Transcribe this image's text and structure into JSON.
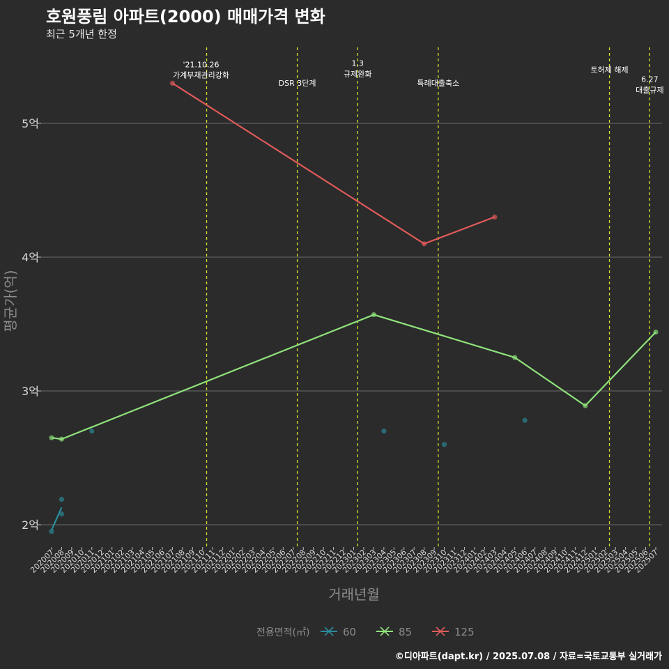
{
  "header": {
    "title": "호원풍림 아파트(2000) 매매가격 변화",
    "subtitle": "최근 5개년 한정",
    "caption": "©디아파트(dapt.kr) / 2025.07.08 / 자료=국토교통부 실거래가"
  },
  "chart_data": {
    "type": "line",
    "xlabel": "거래년월",
    "ylabel": "평균가(억)",
    "x_categories": [
      "202007",
      "202008",
      "202009",
      "202010",
      "202011",
      "202012",
      "202101",
      "202102",
      "202103",
      "202104",
      "202105",
      "202106",
      "202107",
      "202108",
      "202109",
      "202110",
      "202111",
      "202112",
      "202201",
      "202202",
      "202203",
      "202204",
      "202205",
      "202206",
      "202207",
      "202208",
      "202209",
      "202210",
      "202211",
      "202212",
      "202301",
      "202302",
      "202303",
      "202304",
      "202305",
      "202306",
      "202307",
      "202308",
      "202309",
      "202310",
      "202311",
      "202312",
      "202401",
      "202402",
      "202403",
      "202404",
      "202405",
      "202406",
      "202407",
      "202408",
      "202409",
      "202410",
      "202411",
      "202412",
      "202501",
      "202502",
      "202503",
      "202504",
      "202505",
      "202506",
      "202507"
    ],
    "ylim": [
      1.83,
      5.5
    ],
    "y_ticks": [
      {
        "value": 2,
        "label": "2억"
      },
      {
        "value": 3,
        "label": "3억"
      },
      {
        "value": 4,
        "label": "4억"
      },
      {
        "value": 5,
        "label": "5억"
      }
    ],
    "grid": true,
    "legend": {
      "title": "전용면적(㎡)",
      "position": "bottom",
      "entries": [
        {
          "label": "60",
          "color": "#2a8c9c"
        },
        {
          "label": "85",
          "color": "#8fe37b"
        },
        {
          "label": "125",
          "color": "#e05a5a"
        }
      ]
    },
    "series": [
      {
        "name": "60",
        "color": "#2a8c9c",
        "line": [
          {
            "x": "202007",
            "y": 1.96
          },
          {
            "x": "202008",
            "y": 2.13
          }
        ],
        "points": [
          {
            "x": "202007",
            "y": 1.95
          },
          {
            "x": "202008",
            "y": 2.19
          },
          {
            "x": "202008",
            "y": 2.08
          },
          {
            "x": "202011",
            "y": 2.7
          },
          {
            "x": "202304",
            "y": 2.7
          },
          {
            "x": "202310",
            "y": 2.6
          },
          {
            "x": "202406",
            "y": 2.78
          }
        ]
      },
      {
        "name": "85",
        "color": "#8fe37b",
        "line": [
          {
            "x": "202007",
            "y": 2.65
          },
          {
            "x": "202008",
            "y": 2.64
          },
          {
            "x": "202303",
            "y": 3.57
          },
          {
            "x": "202405",
            "y": 3.25
          },
          {
            "x": "202412",
            "y": 2.89
          },
          {
            "x": "202507",
            "y": 3.44
          }
        ],
        "points": [
          {
            "x": "202007",
            "y": 2.65
          },
          {
            "x": "202008",
            "y": 2.64
          },
          {
            "x": "202303",
            "y": 3.57
          },
          {
            "x": "202405",
            "y": 3.25
          },
          {
            "x": "202412",
            "y": 2.89
          },
          {
            "x": "202507",
            "y": 3.44
          }
        ]
      },
      {
        "name": "125",
        "color": "#e05a5a",
        "line": [
          {
            "x": "202107",
            "y": 5.3
          },
          {
            "x": "202308",
            "y": 4.1
          },
          {
            "x": "202403",
            "y": 4.3
          }
        ],
        "points": [
          {
            "x": "202107",
            "y": 5.3
          },
          {
            "x": "202308",
            "y": 4.1
          },
          {
            "x": "202403",
            "y": 4.3
          }
        ]
      }
    ],
    "events": [
      {
        "x": 15.4,
        "lines": [
          "'21.10.26",
          "가계부채관리강화"
        ],
        "label_y": [
          5.42,
          5.34
        ],
        "label_dx": -8
      },
      {
        "x": 24.4,
        "lines": [
          "DSR 3단계"
        ],
        "label_y": [
          5.28
        ],
        "label_dx": 0
      },
      {
        "x": 30.4,
        "lines": [
          "1.3",
          "규제완화"
        ],
        "label_y": [
          5.43,
          5.35
        ],
        "label_dx": 0
      },
      {
        "x": 38.4,
        "lines": [
          "특례대출축소"
        ],
        "label_y": [
          5.28
        ],
        "label_dx": 0
      },
      {
        "x": 55.4,
        "lines": [
          "토허제 해제"
        ],
        "label_y": [
          5.38
        ],
        "label_dx": 0
      },
      {
        "x": 59.4,
        "lines": [
          "6.27",
          "대출규제"
        ],
        "label_y": [
          5.31,
          5.23
        ],
        "label_dx": 0
      }
    ]
  }
}
